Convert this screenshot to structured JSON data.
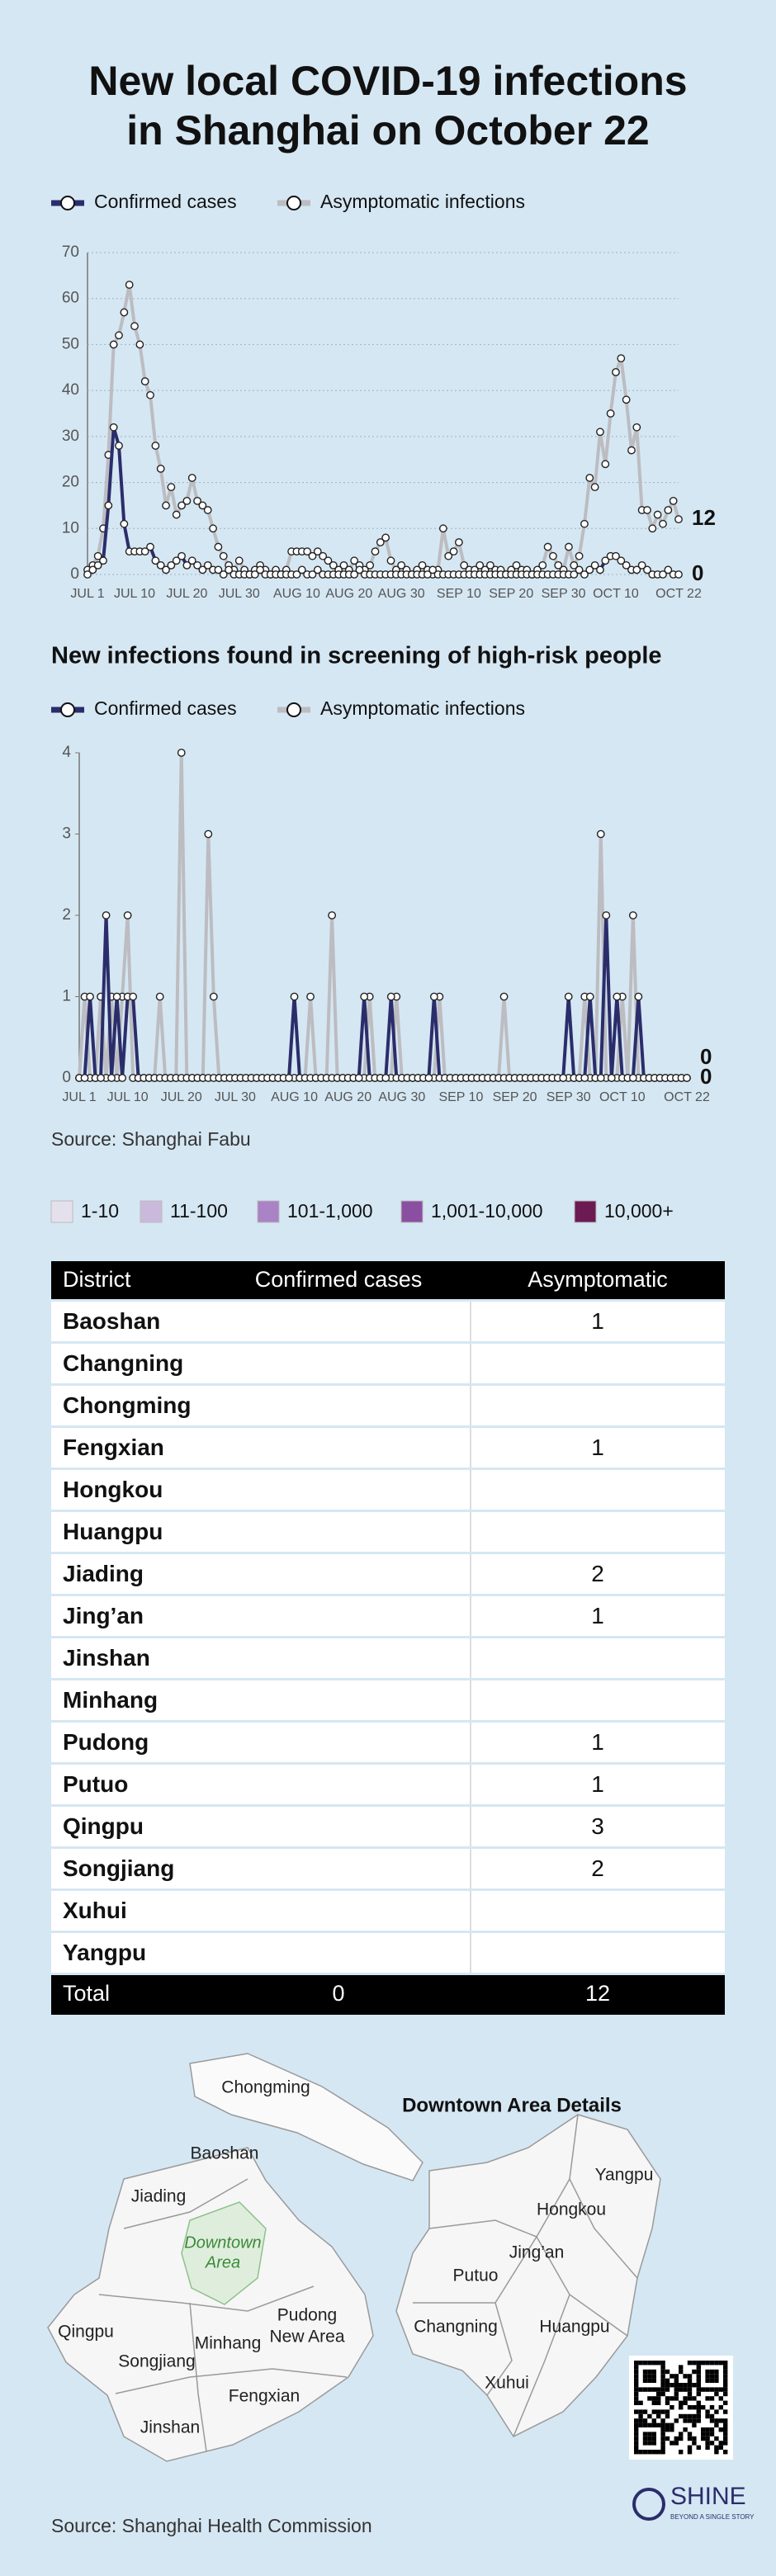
{
  "header": {
    "title": [
      "New local COVID-19 infections",
      "in Shanghai on October 22"
    ]
  },
  "chart_data": [
    {
      "type": "line",
      "grid": true,
      "end_labels": true,
      "categories": [
        "JUL 1",
        null,
        null,
        null,
        null,
        null,
        null,
        null,
        null,
        "JUL 10",
        null,
        null,
        null,
        null,
        null,
        null,
        null,
        null,
        null,
        "JUL 20",
        null,
        null,
        null,
        null,
        null,
        null,
        null,
        null,
        null,
        "JUL 30",
        null,
        null,
        null,
        null,
        null,
        null,
        null,
        null,
        null,
        null,
        "AUG 10",
        null,
        null,
        null,
        null,
        null,
        null,
        null,
        null,
        null,
        "AUG 20",
        null,
        null,
        null,
        null,
        null,
        null,
        null,
        null,
        null,
        "AUG 30",
        null,
        null,
        null,
        null,
        null,
        null,
        null,
        null,
        null,
        null,
        "SEP 10",
        null,
        null,
        null,
        null,
        null,
        null,
        null,
        null,
        null,
        "SEP 20",
        null,
        null,
        null,
        null,
        null,
        null,
        null,
        null,
        null,
        "SEP 30",
        null,
        null,
        null,
        null,
        null,
        null,
        null,
        null,
        null,
        "OCT 10",
        null,
        null,
        null,
        null,
        null,
        null,
        null,
        null,
        null,
        null,
        null,
        "OCT 22"
      ],
      "ylim": [
        0,
        70
      ],
      "yticks": [
        0,
        10,
        20,
        30,
        40,
        50,
        60,
        70
      ],
      "series": [
        {
          "name": "Confirmed cases",
          "color": "#2b2d6b",
          "values": [
            0,
            1,
            2,
            3,
            15,
            32,
            28,
            11,
            5,
            5,
            5,
            5,
            6,
            3,
            2,
            1,
            2,
            3,
            4,
            2,
            3,
            2,
            1,
            2,
            1,
            1,
            0,
            1,
            0,
            0,
            0,
            0,
            0,
            1,
            0,
            0,
            0,
            0,
            0,
            0,
            0,
            1,
            0,
            0,
            1,
            0,
            0,
            0,
            0,
            0,
            0,
            0,
            1,
            0,
            0,
            0,
            0,
            0,
            0,
            0,
            0,
            0,
            0,
            0,
            0,
            0,
            1,
            0,
            0,
            0,
            0,
            0,
            0,
            0,
            0,
            0,
            0,
            0,
            0,
            0,
            0,
            0,
            0,
            0,
            0,
            0,
            0,
            0,
            0,
            0,
            0,
            0,
            0,
            0,
            1,
            0,
            1,
            2,
            1,
            3,
            4,
            4,
            3,
            2,
            1,
            1,
            2,
            1,
            0,
            0,
            0,
            1,
            0,
            0
          ]
        },
        {
          "name": "Asymptomatic infections",
          "color": "#bcbcc1",
          "values": [
            1,
            2,
            4,
            10,
            26,
            50,
            52,
            57,
            63,
            54,
            50,
            42,
            39,
            28,
            23,
            15,
            19,
            13,
            15,
            16,
            21,
            16,
            15,
            14,
            10,
            6,
            4,
            2,
            1,
            3,
            1,
            0,
            1,
            2,
            1,
            0,
            1,
            0,
            1,
            5,
            5,
            5,
            5,
            4,
            5,
            4,
            3,
            2,
            1,
            2,
            1,
            3,
            2,
            1,
            2,
            5,
            7,
            8,
            3,
            1,
            2,
            1,
            0,
            1,
            2,
            1,
            0,
            1,
            10,
            4,
            5,
            7,
            2,
            1,
            1,
            2,
            1,
            2,
            1,
            1,
            0,
            1,
            2,
            1,
            1,
            0,
            1,
            2,
            6,
            4,
            2,
            1,
            6,
            2,
            4,
            11,
            21,
            19,
            31,
            24,
            35,
            44,
            47,
            38,
            27,
            32,
            14,
            14,
            10,
            13,
            11,
            14,
            16,
            12
          ]
        }
      ]
    },
    {
      "type": "line",
      "grid": false,
      "end_labels": true,
      "title": "New infections found in screening of high-risk people",
      "categories": [
        "JUL 1",
        null,
        null,
        null,
        null,
        null,
        null,
        null,
        null,
        "JUL 10",
        null,
        null,
        null,
        null,
        null,
        null,
        null,
        null,
        null,
        "JUL 20",
        null,
        null,
        null,
        null,
        null,
        null,
        null,
        null,
        null,
        "JUL 30",
        null,
        null,
        null,
        null,
        null,
        null,
        null,
        null,
        null,
        null,
        "AUG 10",
        null,
        null,
        null,
        null,
        null,
        null,
        null,
        null,
        null,
        "AUG 20",
        null,
        null,
        null,
        null,
        null,
        null,
        null,
        null,
        null,
        "AUG 30",
        null,
        null,
        null,
        null,
        null,
        null,
        null,
        null,
        null,
        null,
        "SEP 10",
        null,
        null,
        null,
        null,
        null,
        null,
        null,
        null,
        null,
        "SEP 20",
        null,
        null,
        null,
        null,
        null,
        null,
        null,
        null,
        null,
        "SEP 30",
        null,
        null,
        null,
        null,
        null,
        null,
        null,
        null,
        null,
        "OCT 10",
        null,
        null,
        null,
        null,
        null,
        null,
        null,
        null,
        null,
        null,
        null,
        "OCT 22"
      ],
      "ylim": [
        0,
        4
      ],
      "yticks": [
        0,
        1,
        2,
        3,
        4
      ],
      "series": [
        {
          "name": "Confirmed cases",
          "color": "#2b2d6b",
          "values": [
            0,
            0,
            1,
            0,
            0,
            2,
            0,
            1,
            0,
            1,
            1,
            0,
            0,
            0,
            0,
            0,
            0,
            0,
            0,
            0,
            0,
            0,
            0,
            0,
            0,
            0,
            0,
            0,
            0,
            0,
            0,
            0,
            0,
            0,
            0,
            0,
            0,
            0,
            0,
            0,
            1,
            0,
            0,
            0,
            0,
            0,
            0,
            0,
            0,
            0,
            0,
            0,
            0,
            1,
            0,
            0,
            0,
            0,
            1,
            0,
            0,
            0,
            0,
            0,
            0,
            0,
            1,
            0,
            0,
            0,
            0,
            0,
            0,
            0,
            0,
            0,
            0,
            0,
            0,
            0,
            0,
            0,
            0,
            0,
            0,
            0,
            0,
            0,
            0,
            0,
            0,
            1,
            0,
            0,
            0,
            1,
            0,
            0,
            2,
            0,
            1,
            0,
            0,
            0,
            1,
            0,
            0,
            0,
            0,
            0,
            0,
            0,
            0,
            0
          ]
        },
        {
          "name": "Asymptomatic infections",
          "color": "#bcbcc1",
          "values": [
            0,
            1,
            0,
            0,
            1,
            0,
            1,
            0,
            1,
            2,
            0,
            0,
            0,
            0,
            0,
            1,
            0,
            0,
            0,
            4,
            0,
            0,
            0,
            0,
            3,
            1,
            0,
            0,
            0,
            0,
            0,
            0,
            0,
            0,
            0,
            0,
            0,
            0,
            0,
            0,
            0,
            0,
            0,
            1,
            0,
            0,
            0,
            2,
            0,
            0,
            0,
            0,
            0,
            0,
            1,
            0,
            0,
            0,
            0,
            1,
            0,
            0,
            0,
            0,
            0,
            0,
            0,
            1,
            0,
            0,
            0,
            0,
            0,
            0,
            0,
            0,
            0,
            0,
            0,
            1,
            0,
            0,
            0,
            0,
            0,
            0,
            0,
            0,
            0,
            0,
            0,
            0,
            0,
            0,
            1,
            0,
            0,
            3,
            0,
            0,
            0,
            1,
            0,
            2,
            0,
            0,
            0,
            0,
            0,
            0,
            0,
            0,
            0,
            0
          ]
        }
      ]
    }
  ],
  "source": "Source: Shanghai Fabu",
  "color_scale": [
    {
      "label": "1-10",
      "color": "#e4e1ec"
    },
    {
      "label": "11-100",
      "color": "#cbb9dc"
    },
    {
      "label": "101-1,000",
      "color": "#aa82c6"
    },
    {
      "label": "1,001-10,000",
      "color": "#8b4fa2"
    },
    {
      "label": "10,000+",
      "color": "#6b1a52"
    }
  ],
  "table": {
    "columns": [
      "District",
      "Confirmed cases",
      "Asymptomatic"
    ],
    "rows": [
      [
        "Baoshan",
        null,
        1
      ],
      [
        "Changning",
        null,
        null
      ],
      [
        "Chongming",
        null,
        null
      ],
      [
        "Fengxian",
        null,
        1
      ],
      [
        "Hongkou",
        null,
        null
      ],
      [
        "Huangpu",
        null,
        null
      ],
      [
        "Jiading",
        null,
        2
      ],
      [
        "Jing’an",
        null,
        1
      ],
      [
        "Jinshan",
        null,
        null
      ],
      [
        "Minhang",
        null,
        null
      ],
      [
        "Pudong",
        null,
        1
      ],
      [
        "Putuo",
        null,
        1
      ],
      [
        "Qingpu",
        null,
        3
      ],
      [
        "Songjiang",
        null,
        2
      ],
      [
        "Xuhui",
        null,
        null
      ],
      [
        "Yangpu",
        null,
        null
      ]
    ],
    "total": [
      "Total",
      0,
      12
    ]
  },
  "map": {
    "districts": {
      "chongming": "Chongming",
      "baoshan": "Baoshan",
      "jiading": "Jiading",
      "downtown": [
        "Downtown",
        "Area"
      ],
      "pudong": [
        "Pudong",
        "New Area"
      ],
      "qingpu": "Qingpu",
      "songjiang": "Songjiang",
      "minhang": "Minhang",
      "fengxian": "Fengxian",
      "jinshan": "Jinshan"
    },
    "detail_title": "Downtown Area Details",
    "detail": {
      "yangpu": "Yangpu",
      "hongkou": "Hongkou",
      "jingan": "Jing’an",
      "putuo": "Putuo",
      "changning": "Changning",
      "huangpu": "Huangpu",
      "xuhui": "Xuhui"
    }
  },
  "map_source": "Source: Shanghai Health Commission",
  "logo": {
    "name": "SHINE",
    "tagline": "BEYOND A SINGLE STORY"
  }
}
